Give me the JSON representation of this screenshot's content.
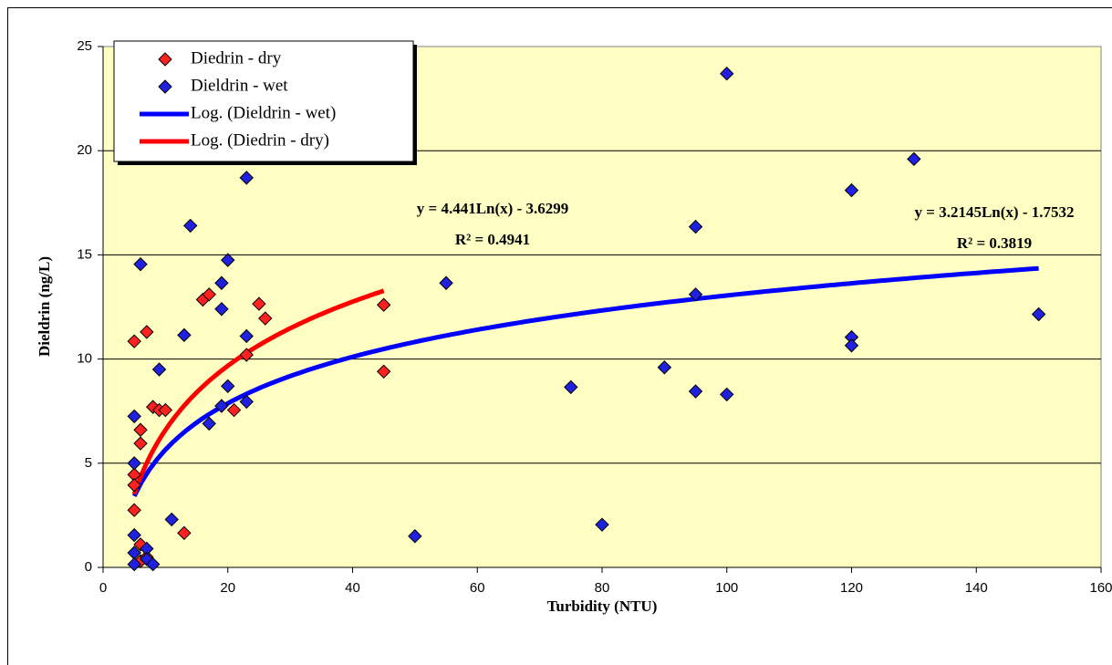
{
  "chart_data": {
    "type": "scatter",
    "x_label": "Turbidity (NTU)",
    "y_label": "Dieldrin (ng/L)",
    "xlim": [
      0,
      160
    ],
    "xticks": [
      0,
      20,
      40,
      60,
      80,
      100,
      120,
      140,
      160
    ],
    "ylim": [
      0,
      25
    ],
    "yticks": [
      0,
      5,
      10,
      15,
      20,
      25
    ],
    "grid": true,
    "legend": "top-left",
    "series": [
      {
        "name": "Diedrin - dry",
        "color": "#ff2020",
        "x": [
          5,
          7,
          5,
          5,
          5,
          6,
          6,
          8,
          9,
          10,
          13,
          16,
          17,
          21,
          23,
          25,
          26,
          45,
          45,
          6,
          6,
          7
        ],
        "values": [
          10.85,
          11.3,
          4.45,
          3.95,
          2.75,
          6.6,
          5.95,
          7.7,
          7.55,
          7.55,
          1.65,
          12.85,
          13.1,
          7.55,
          10.2,
          12.65,
          11.95,
          12.6,
          9.4,
          1.1,
          0.3,
          0.5
        ]
      },
      {
        "name": "Dieldrin - wet",
        "color": "#2020e0",
        "x": [
          5,
          5,
          5,
          5,
          5,
          6,
          7,
          7,
          8,
          9,
          11,
          13,
          14,
          17,
          19,
          19,
          19,
          20,
          20,
          23,
          23,
          23,
          50,
          55,
          75,
          80,
          90,
          95,
          95,
          95,
          100,
          100,
          120,
          120,
          120,
          130,
          150
        ],
        "values": [
          7.25,
          5.0,
          1.55,
          0.7,
          0.15,
          14.55,
          0.9,
          0.4,
          0.15,
          9.5,
          2.3,
          11.15,
          16.4,
          6.9,
          13.65,
          12.4,
          7.75,
          14.75,
          8.7,
          18.7,
          11.1,
          7.95,
          1.5,
          13.65,
          8.65,
          2.05,
          9.6,
          16.35,
          13.1,
          8.45,
          23.7,
          8.3,
          18.1,
          11.05,
          10.65,
          19.6,
          12.15
        ]
      }
    ],
    "trendlines": [
      {
        "name": "Log. (Dieldrin - wet)",
        "color": "#0000ff",
        "of_series": 1,
        "coefficients": [
          3.2145,
          -1.7532
        ],
        "equation": "y = 3.2145Ln(x) - 1.7532",
        "r2": "R² = 0.3819"
      },
      {
        "name": "Log. (Diedrin - dry)",
        "color": "#ff0000",
        "of_series": 0,
        "coefficients": [
          4.441,
          -3.6299
        ],
        "equation": "y = 4.441Ln(x) - 3.6299",
        "r2": "R² = 0.4941"
      }
    ]
  }
}
